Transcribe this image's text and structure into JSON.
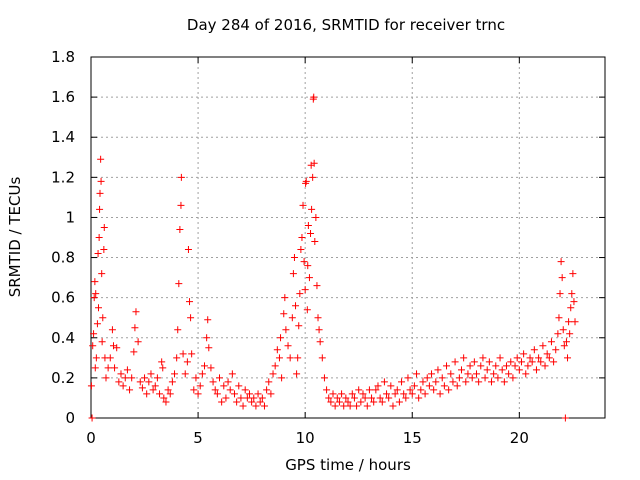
{
  "chart_data": {
    "type": "scatter",
    "title": "Day 284 of 2016, SRMTID for receiver trnc",
    "xlabel": "GPS time / hours",
    "ylabel": "SRMTID / TECUs",
    "xlim": [
      0,
      24
    ],
    "ylim": [
      0,
      1.8
    ],
    "xticks": [
      0,
      5,
      10,
      15,
      20
    ],
    "xtick_labels": [
      "0",
      "5",
      "10",
      "15",
      "20"
    ],
    "yticks": [
      0,
      0.2,
      0.4,
      0.6,
      0.8,
      1.0,
      1.2,
      1.4,
      1.6,
      1.8
    ],
    "ytick_labels": [
      "0",
      "0.2",
      "0.4",
      "0.6",
      "0.8",
      "1",
      "1.2",
      "1.4",
      "1.6",
      "1.8"
    ],
    "grid": true,
    "marker": "+",
    "color": "#ff0000",
    "series": [
      {
        "name": "SRMTID",
        "points": [
          [
            0.02,
            0.16
          ],
          [
            0.05,
            0.0
          ],
          [
            0.08,
            0.36
          ],
          [
            0.12,
            0.42
          ],
          [
            0.15,
            0.6
          ],
          [
            0.18,
            0.68
          ],
          [
            0.2,
            0.25
          ],
          [
            0.22,
            0.62
          ],
          [
            0.25,
            0.3
          ],
          [
            0.3,
            0.47
          ],
          [
            0.33,
            0.82
          ],
          [
            0.35,
            0.55
          ],
          [
            0.38,
            0.9
          ],
          [
            0.4,
            1.04
          ],
          [
            0.42,
            1.12
          ],
          [
            0.45,
            1.29
          ],
          [
            0.47,
            1.18
          ],
          [
            0.5,
            0.72
          ],
          [
            0.52,
            0.38
          ],
          [
            0.55,
            0.5
          ],
          [
            0.6,
            0.84
          ],
          [
            0.62,
            0.95
          ],
          [
            0.65,
            0.3
          ],
          [
            0.7,
            0.2
          ],
          [
            0.8,
            0.25
          ],
          [
            0.9,
            0.3
          ],
          [
            1.0,
            0.44
          ],
          [
            1.05,
            0.36
          ],
          [
            1.1,
            0.25
          ],
          [
            1.2,
            0.35
          ],
          [
            1.3,
            0.18
          ],
          [
            1.4,
            0.22
          ],
          [
            1.5,
            0.16
          ],
          [
            1.6,
            0.2
          ],
          [
            1.7,
            0.24
          ],
          [
            1.8,
            0.14
          ],
          [
            1.9,
            0.2
          ],
          [
            2.0,
            0.33
          ],
          [
            2.05,
            0.45
          ],
          [
            2.1,
            0.53
          ],
          [
            2.2,
            0.38
          ],
          [
            2.3,
            0.18
          ],
          [
            2.4,
            0.15
          ],
          [
            2.5,
            0.2
          ],
          [
            2.6,
            0.12
          ],
          [
            2.7,
            0.18
          ],
          [
            2.8,
            0.22
          ],
          [
            2.9,
            0.14
          ],
          [
            3.0,
            0.16
          ],
          [
            3.1,
            0.2
          ],
          [
            3.2,
            0.12
          ],
          [
            3.3,
            0.28
          ],
          [
            3.35,
            0.25
          ],
          [
            3.4,
            0.1
          ],
          [
            3.5,
            0.08
          ],
          [
            3.6,
            0.14
          ],
          [
            3.7,
            0.12
          ],
          [
            3.8,
            0.18
          ],
          [
            3.9,
            0.22
          ],
          [
            4.0,
            0.3
          ],
          [
            4.05,
            0.44
          ],
          [
            4.1,
            0.67
          ],
          [
            4.15,
            0.94
          ],
          [
            4.2,
            1.06
          ],
          [
            4.22,
            1.2
          ],
          [
            4.3,
            0.32
          ],
          [
            4.4,
            0.22
          ],
          [
            4.5,
            0.28
          ],
          [
            4.55,
            0.84
          ],
          [
            4.6,
            0.58
          ],
          [
            4.65,
            0.5
          ],
          [
            4.7,
            0.32
          ],
          [
            4.8,
            0.14
          ],
          [
            4.9,
            0.2
          ],
          [
            5.0,
            0.12
          ],
          [
            5.1,
            0.16
          ],
          [
            5.2,
            0.22
          ],
          [
            5.3,
            0.26
          ],
          [
            5.4,
            0.4
          ],
          [
            5.45,
            0.49
          ],
          [
            5.5,
            0.35
          ],
          [
            5.6,
            0.25
          ],
          [
            5.7,
            0.18
          ],
          [
            5.8,
            0.14
          ],
          [
            5.9,
            0.12
          ],
          [
            6.0,
            0.2
          ],
          [
            6.1,
            0.08
          ],
          [
            6.2,
            0.16
          ],
          [
            6.3,
            0.1
          ],
          [
            6.4,
            0.18
          ],
          [
            6.5,
            0.14
          ],
          [
            6.6,
            0.22
          ],
          [
            6.7,
            0.12
          ],
          [
            6.8,
            0.08
          ],
          [
            6.9,
            0.16
          ],
          [
            7.0,
            0.1
          ],
          [
            7.1,
            0.06
          ],
          [
            7.2,
            0.14
          ],
          [
            7.3,
            0.1
          ],
          [
            7.4,
            0.12
          ],
          [
            7.5,
            0.08
          ],
          [
            7.6,
            0.1
          ],
          [
            7.7,
            0.06
          ],
          [
            7.8,
            0.12
          ],
          [
            7.9,
            0.08
          ],
          [
            8.0,
            0.1
          ],
          [
            8.1,
            0.06
          ],
          [
            8.2,
            0.14
          ],
          [
            8.3,
            0.18
          ],
          [
            8.4,
            0.12
          ],
          [
            8.5,
            0.22
          ],
          [
            8.6,
            0.26
          ],
          [
            8.7,
            0.34
          ],
          [
            8.8,
            0.3
          ],
          [
            8.85,
            0.4
          ],
          [
            8.9,
            0.2
          ],
          [
            9.0,
            0.52
          ],
          [
            9.05,
            0.6
          ],
          [
            9.1,
            0.44
          ],
          [
            9.2,
            0.36
          ],
          [
            9.3,
            0.3
          ],
          [
            9.4,
            0.5
          ],
          [
            9.45,
            0.72
          ],
          [
            9.5,
            0.8
          ],
          [
            9.55,
            0.56
          ],
          [
            9.6,
            0.22
          ],
          [
            9.65,
            0.3
          ],
          [
            9.7,
            0.46
          ],
          [
            9.75,
            0.62
          ],
          [
            9.8,
            0.84
          ],
          [
            9.85,
            0.9
          ],
          [
            9.9,
            1.06
          ],
          [
            9.95,
            0.78
          ],
          [
            10.0,
            0.64
          ],
          [
            10.02,
            1.17
          ],
          [
            10.05,
            1.18
          ],
          [
            10.1,
            0.54
          ],
          [
            10.12,
            0.76
          ],
          [
            10.15,
            0.96
          ],
          [
            10.2,
            0.7
          ],
          [
            10.25,
            0.92
          ],
          [
            10.28,
            1.26
          ],
          [
            10.3,
            1.04
          ],
          [
            10.35,
            1.2
          ],
          [
            10.38,
            1.59
          ],
          [
            10.4,
            1.6
          ],
          [
            10.42,
            1.27
          ],
          [
            10.45,
            0.88
          ],
          [
            10.5,
            1.0
          ],
          [
            10.55,
            0.66
          ],
          [
            10.6,
            0.5
          ],
          [
            10.65,
            0.44
          ],
          [
            10.7,
            0.38
          ],
          [
            10.8,
            0.3
          ],
          [
            10.9,
            0.2
          ],
          [
            11.0,
            0.14
          ],
          [
            11.1,
            0.1
          ],
          [
            11.2,
            0.08
          ],
          [
            11.3,
            0.12
          ],
          [
            11.4,
            0.06
          ],
          [
            11.5,
            0.1
          ],
          [
            11.6,
            0.08
          ],
          [
            11.7,
            0.12
          ],
          [
            11.8,
            0.06
          ],
          [
            11.9,
            0.1
          ],
          [
            12.0,
            0.08
          ],
          [
            12.1,
            0.06
          ],
          [
            12.2,
            0.12
          ],
          [
            12.3,
            0.1
          ],
          [
            12.4,
            0.06
          ],
          [
            12.5,
            0.14
          ],
          [
            12.6,
            0.08
          ],
          [
            12.7,
            0.12
          ],
          [
            12.8,
            0.1
          ],
          [
            12.9,
            0.06
          ],
          [
            13.0,
            0.14
          ],
          [
            13.1,
            0.1
          ],
          [
            13.2,
            0.08
          ],
          [
            13.3,
            0.14
          ],
          [
            13.4,
            0.16
          ],
          [
            13.5,
            0.1
          ],
          [
            13.6,
            0.08
          ],
          [
            13.7,
            0.18
          ],
          [
            13.8,
            0.12
          ],
          [
            13.9,
            0.1
          ],
          [
            14.0,
            0.16
          ],
          [
            14.1,
            0.06
          ],
          [
            14.2,
            0.12
          ],
          [
            14.3,
            0.14
          ],
          [
            14.4,
            0.08
          ],
          [
            14.5,
            0.18
          ],
          [
            14.6,
            0.12
          ],
          [
            14.7,
            0.1
          ],
          [
            14.8,
            0.2
          ],
          [
            14.9,
            0.14
          ],
          [
            15.0,
            0.12
          ],
          [
            15.1,
            0.16
          ],
          [
            15.2,
            0.22
          ],
          [
            15.3,
            0.1
          ],
          [
            15.4,
            0.14
          ],
          [
            15.5,
            0.18
          ],
          [
            15.6,
            0.12
          ],
          [
            15.7,
            0.2
          ],
          [
            15.8,
            0.16
          ],
          [
            15.9,
            0.22
          ],
          [
            16.0,
            0.14
          ],
          [
            16.1,
            0.18
          ],
          [
            16.2,
            0.24
          ],
          [
            16.3,
            0.12
          ],
          [
            16.4,
            0.2
          ],
          [
            16.5,
            0.16
          ],
          [
            16.6,
            0.26
          ],
          [
            16.7,
            0.14
          ],
          [
            16.8,
            0.22
          ],
          [
            16.9,
            0.18
          ],
          [
            17.0,
            0.28
          ],
          [
            17.1,
            0.16
          ],
          [
            17.2,
            0.2
          ],
          [
            17.3,
            0.24
          ],
          [
            17.4,
            0.3
          ],
          [
            17.5,
            0.18
          ],
          [
            17.6,
            0.22
          ],
          [
            17.7,
            0.26
          ],
          [
            17.8,
            0.2
          ],
          [
            17.9,
            0.28
          ],
          [
            18.0,
            0.22
          ],
          [
            18.1,
            0.18
          ],
          [
            18.2,
            0.26
          ],
          [
            18.3,
            0.3
          ],
          [
            18.4,
            0.2
          ],
          [
            18.5,
            0.24
          ],
          [
            18.6,
            0.28
          ],
          [
            18.7,
            0.18
          ],
          [
            18.8,
            0.22
          ],
          [
            18.9,
            0.26
          ],
          [
            19.0,
            0.2
          ],
          [
            19.1,
            0.3
          ],
          [
            19.2,
            0.24
          ],
          [
            19.3,
            0.18
          ],
          [
            19.4,
            0.26
          ],
          [
            19.5,
            0.22
          ],
          [
            19.6,
            0.28
          ],
          [
            19.7,
            0.2
          ],
          [
            19.8,
            0.26
          ],
          [
            19.9,
            0.3
          ],
          [
            20.0,
            0.24
          ],
          [
            20.1,
            0.28
          ],
          [
            20.2,
            0.32
          ],
          [
            20.3,
            0.22
          ],
          [
            20.4,
            0.26
          ],
          [
            20.5,
            0.3
          ],
          [
            20.6,
            0.28
          ],
          [
            20.7,
            0.34
          ],
          [
            20.8,
            0.24
          ],
          [
            20.9,
            0.3
          ],
          [
            21.0,
            0.28
          ],
          [
            21.1,
            0.36
          ],
          [
            21.2,
            0.26
          ],
          [
            21.3,
            0.32
          ],
          [
            21.4,
            0.3
          ],
          [
            21.5,
            0.38
          ],
          [
            21.6,
            0.28
          ],
          [
            21.7,
            0.34
          ],
          [
            21.8,
            0.42
          ],
          [
            21.85,
            0.5
          ],
          [
            21.9,
            0.62
          ],
          [
            21.95,
            0.78
          ],
          [
            22.0,
            0.7
          ],
          [
            22.05,
            0.44
          ],
          [
            22.1,
            0.36
          ],
          [
            22.15,
            0.0
          ],
          [
            22.2,
            0.38
          ],
          [
            22.25,
            0.3
          ],
          [
            22.3,
            0.48
          ],
          [
            22.35,
            0.42
          ],
          [
            22.4,
            0.55
          ],
          [
            22.45,
            0.62
          ],
          [
            22.5,
            0.72
          ],
          [
            22.55,
            0.58
          ],
          [
            22.6,
            0.48
          ]
        ]
      }
    ]
  }
}
